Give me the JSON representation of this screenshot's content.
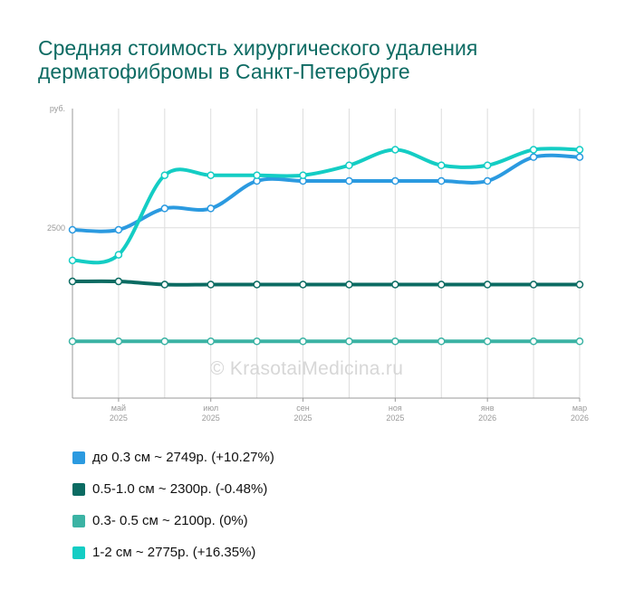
{
  "title_line1": "Средняя стоимость хирургического удаления",
  "title_line2": "дерматофибромы в Санкт-Петербурге",
  "watermark": "© KrasotaiMedicina.ru",
  "chart_data": {
    "type": "line",
    "ylabel": "руб.",
    "yticks": [
      2500
    ],
    "ylim": [
      1900,
      2920
    ],
    "x_labels": [
      {
        "i": 1,
        "month": "май",
        "year": "2025"
      },
      {
        "i": 3,
        "month": "июл",
        "year": "2025"
      },
      {
        "i": 5,
        "month": "сен",
        "year": "2025"
      },
      {
        "i": 7,
        "month": "ноя",
        "year": "2025"
      },
      {
        "i": 9,
        "month": "янв",
        "year": "2026"
      },
      {
        "i": 11,
        "month": "мар",
        "year": "2026"
      }
    ],
    "points_count": 12,
    "series": [
      {
        "name": "до 0.3 см",
        "color": "#2b9ae0",
        "legend": "до 0.3 см ~ 2749р. (+10.27%)",
        "values": [
          2493,
          2493,
          2568,
          2568,
          2665,
          2665,
          2665,
          2665,
          2665,
          2665,
          2749,
          2749
        ]
      },
      {
        "name": "0.5-1.0 см",
        "color": "#0b6b62",
        "legend": "0.5-1.0 см ~ 2300р. (-0.48%)",
        "values": [
          2311,
          2311,
          2300,
          2300,
          2300,
          2300,
          2300,
          2300,
          2300,
          2300,
          2300,
          2300
        ]
      },
      {
        "name": "0.3- 0.5 см",
        "color": "#3bb3a4",
        "legend": "0.3- 0.5 см ~ 2100р. (0%)",
        "values": [
          2100,
          2100,
          2100,
          2100,
          2100,
          2100,
          2100,
          2100,
          2100,
          2100,
          2100,
          2100
        ]
      },
      {
        "name": "1-2 см",
        "color": "#14cdc4",
        "legend": "1-2 см ~ 2775р. (+16.35%)",
        "values": [
          2385,
          2405,
          2685,
          2685,
          2685,
          2685,
          2720,
          2775,
          2720,
          2720,
          2775,
          2775
        ]
      }
    ]
  }
}
